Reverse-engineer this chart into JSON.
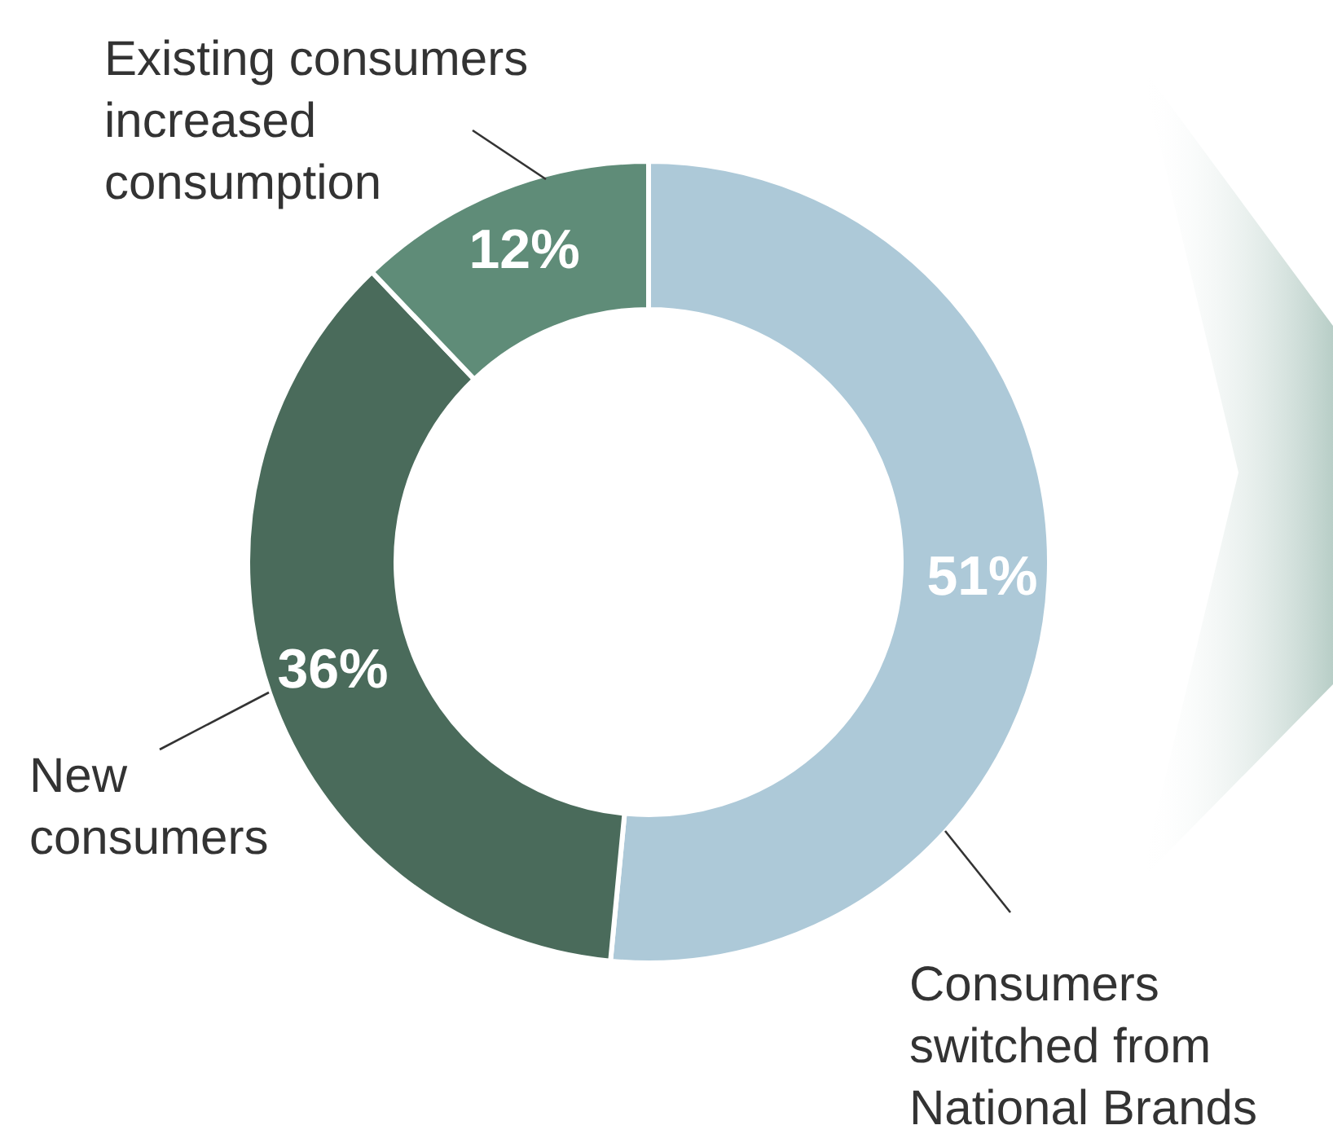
{
  "chart_data": {
    "type": "donut",
    "categories": [
      "Consumers switched from National Brands",
      "New consumers",
      "Existing consumers increased consumption"
    ],
    "values": [
      51,
      36,
      12
    ],
    "colors": [
      "#adc9d8",
      "#4a6b5b",
      "#5f8c78"
    ],
    "value_labels": [
      "51%",
      "36%",
      "12%"
    ]
  }
}
